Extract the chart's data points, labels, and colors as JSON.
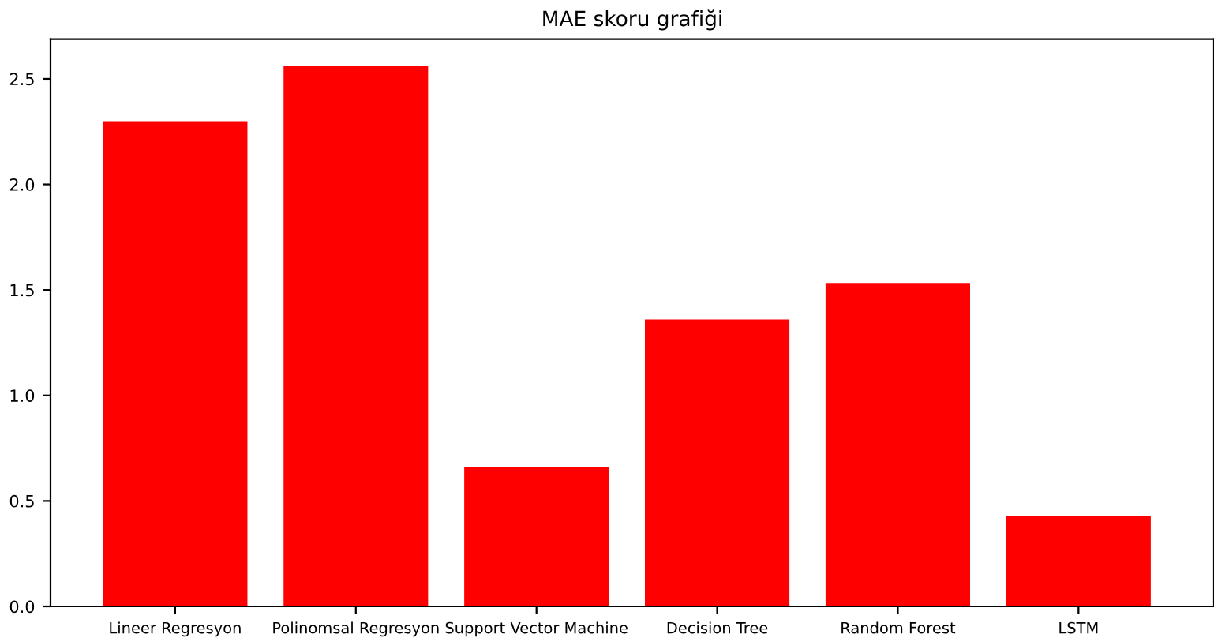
{
  "chart_data": {
    "type": "bar",
    "title": "MAE skoru grafiği",
    "categories": [
      "Lineer Regresyon",
      "Polinomsal Regresyon",
      "Support Vector Machine",
      "Decision Tree",
      "Random Forest",
      "LSTM"
    ],
    "values": [
      2.3,
      2.56,
      0.66,
      1.36,
      1.53,
      0.43
    ],
    "color": "#ff0000",
    "ylim": [
      0,
      2.688
    ],
    "yticks": [
      {
        "value": 0,
        "label": "0.0"
      },
      0.5,
      {
        "value": 1,
        "label": "1.0"
      },
      1.5,
      {
        "value": 2,
        "label": "2.0"
      },
      2.5
    ],
    "grid": false,
    "legend": false
  }
}
